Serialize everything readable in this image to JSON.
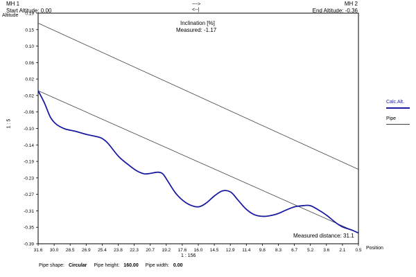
{
  "header": {
    "left_name": "MH 1",
    "right_name": "MH 2",
    "start_altitude": "Start Altitude: 0.00",
    "end_altitude": "End Altitude: -0.36",
    "arrow_top": "~~>",
    "arrow_bottom": "<--|",
    "inclination_label": "Inclination [%]",
    "inclination_measured": "Measured: -1.17"
  },
  "axis": {
    "y_title": "Altitude",
    "x_title": "Position",
    "scale_vertical": "1 : 5",
    "scale_horizontal": "1 : 156",
    "measured_distance": "Measured distance: 31.1"
  },
  "legend": {
    "calc_alt": "Calc.Alt.",
    "pipe": "Pipe",
    "calc_color": "#1a1aa0",
    "pipe_color": "#404040"
  },
  "footer": {
    "shape_label": "Pipe shape:",
    "shape_value": "Circular",
    "height_label": "Pipe height:",
    "height_value": "160.00",
    "width_label": "Pipe width:",
    "width_value": "0.00"
  },
  "chart_data": {
    "type": "line",
    "xlabel": "Position",
    "ylabel": "Altitude",
    "x_reversed": true,
    "xlim": [
      31.6,
      0.5
    ],
    "ylim": [
      -0.39,
      0.19
    ],
    "x_ticks": [
      "31.6",
      "30.0",
      "28.5",
      "26.9",
      "25.4",
      "23.8",
      "22.3",
      "20.7",
      "19.2",
      "17.6",
      "16.0",
      "14.5",
      "12.9",
      "11.4",
      "9.8",
      "8.3",
      "6.7",
      "5.2",
      "3.6",
      "2.1",
      "0.5"
    ],
    "y_ticks": [
      "0.19",
      "0.15",
      "0.10",
      "0.06",
      "0.02",
      "-0.02",
      "-0.06",
      "-0.10",
      "-0.14",
      "-0.19",
      "-0.23",
      "-0.27",
      "-0.31",
      "-0.35",
      "-0.39"
    ],
    "series": [
      {
        "name": "Calc.Alt.",
        "x": [
          31.6,
          31.0,
          30.4,
          29.8,
          29.0,
          28.0,
          26.9,
          26.0,
          25.4,
          24.8,
          23.8,
          22.8,
          22.0,
          21.3,
          20.7,
          20.0,
          19.5,
          19.0,
          18.3,
          17.6,
          16.8,
          16.0,
          15.3,
          14.5,
          13.7,
          12.9,
          12.2,
          11.4,
          10.6,
          9.8,
          9.0,
          8.3,
          7.5,
          6.7,
          5.8,
          5.2,
          4.5,
          3.6,
          2.8,
          2.1,
          1.2,
          0.5
        ],
        "y": [
          -0.005,
          -0.035,
          -0.072,
          -0.09,
          -0.101,
          -0.107,
          -0.115,
          -0.12,
          -0.125,
          -0.138,
          -0.17,
          -0.192,
          -0.207,
          -0.214,
          -0.213,
          -0.21,
          -0.214,
          -0.233,
          -0.261,
          -0.28,
          -0.293,
          -0.297,
          -0.288,
          -0.27,
          -0.257,
          -0.26,
          -0.28,
          -0.303,
          -0.317,
          -0.321,
          -0.319,
          -0.314,
          -0.305,
          -0.297,
          -0.294,
          -0.294,
          -0.303,
          -0.318,
          -0.335,
          -0.347,
          -0.355,
          -0.363
        ]
      },
      {
        "name": "Pipe",
        "x": [
          31.6,
          0.5
        ],
        "y": [
          0.165,
          -0.203
        ]
      },
      {
        "name": "",
        "x": [
          31.6,
          0.5
        ],
        "y": [
          -0.005,
          -0.363
        ]
      }
    ]
  }
}
